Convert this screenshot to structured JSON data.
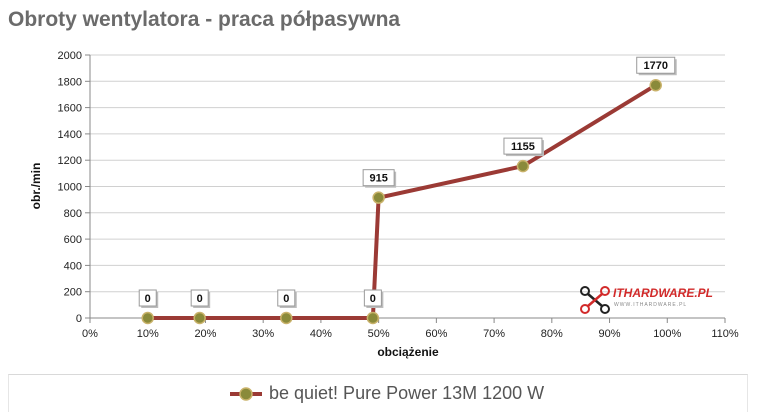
{
  "chart_data": {
    "type": "line",
    "title": "Obroty wentylatora - praca półpasywna",
    "xlabel": "obciążenie",
    "ylabel": "obr./min",
    "xlim": [
      0,
      110
    ],
    "ylim": [
      0,
      2000
    ],
    "x_tick_labels": [
      "0%",
      "10%",
      "20%",
      "30%",
      "40%",
      "50%",
      "60%",
      "70%",
      "80%",
      "90%",
      "100%",
      "110%"
    ],
    "y_tick_labels": [
      "0",
      "200",
      "400",
      "600",
      "800",
      "1000",
      "1200",
      "1400",
      "1600",
      "1800",
      "2000"
    ],
    "grid": "horizontal",
    "legend": "bottom",
    "series": [
      {
        "name": "be quiet! Pure Power 13M 1200 W",
        "color": "#9b3a35",
        "marker_color": "#8a8a3a",
        "x": [
          10,
          19,
          34,
          49,
          50,
          75,
          98
        ],
        "y": [
          0,
          0,
          0,
          0,
          915,
          1155,
          1770
        ],
        "labels": [
          "0",
          "0",
          "0",
          "0",
          "915",
          "1155",
          "1770"
        ]
      }
    ]
  },
  "watermark": {
    "text": "ITHARDWARE.PL",
    "subtext": "WWW.ITHARDWARE.PL",
    "icon": "drone-logo-icon"
  }
}
